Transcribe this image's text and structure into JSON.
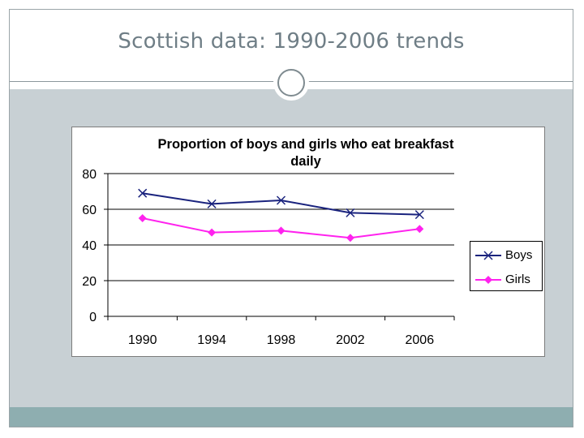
{
  "slide": {
    "title": "Scottish data: 1990-2006 trends"
  },
  "colors": {
    "boys": "#1a237e",
    "girls": "#ff22ee",
    "title_text": "#6f7e86",
    "content_band": "#c8d0d4",
    "footer_band": "#8eaeb0"
  },
  "chart_data": {
    "type": "line",
    "title_line1": "Proportion of boys and girls  who eat breakfast",
    "title_line2": "daily",
    "categories": [
      "1990",
      "1994",
      "1998",
      "2002",
      "2006"
    ],
    "series": [
      {
        "name": "Boys",
        "values": [
          69,
          63,
          65,
          58,
          57
        ],
        "marker": "x"
      },
      {
        "name": "Girls",
        "values": [
          55,
          47,
          48,
          44,
          49
        ],
        "marker": "diamond"
      }
    ],
    "ylim": [
      0,
      80
    ],
    "yticks": [
      "0",
      "20",
      "40",
      "60",
      "80"
    ],
    "grid": true,
    "legend_position": "right"
  }
}
